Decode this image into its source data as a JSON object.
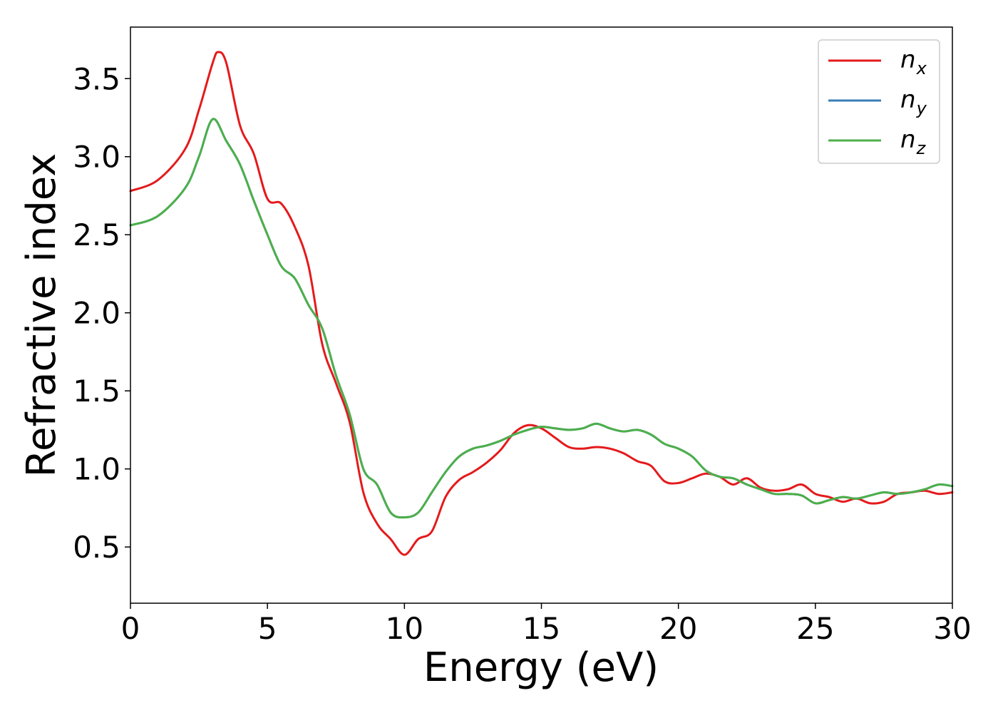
{
  "chart_data": {
    "type": "line",
    "xlabel": "Energy (eV)",
    "ylabel": "Refractive index",
    "xlim": [
      0,
      30
    ],
    "ylim": [
      0.14,
      3.83
    ],
    "xticks": [
      "0",
      "5",
      "10",
      "15",
      "20",
      "25",
      "30"
    ],
    "yticks": [
      "0.5",
      "1.0",
      "1.5",
      "2.0",
      "2.5",
      "3.0",
      "3.5"
    ],
    "legend_position": "top-right",
    "grid": false,
    "series": [
      {
        "name": "n",
        "subscript": "x",
        "color": "#e41a1c",
        "x": [
          0,
          1,
          2,
          2.5,
          3,
          3.2,
          3.5,
          4,
          4.5,
          5,
          5.5,
          6,
          6.5,
          7,
          7.5,
          8,
          8.5,
          9,
          9.5,
          10,
          10.5,
          11,
          11.5,
          12,
          12.5,
          13,
          13.5,
          14,
          14.5,
          15,
          15.5,
          16,
          16.5,
          17,
          17.5,
          18,
          18.5,
          19,
          19.5,
          20,
          20.5,
          21,
          21.5,
          22,
          22.5,
          23,
          23.5,
          24,
          24.5,
          25,
          25.5,
          26,
          26.5,
          27,
          27.5,
          28,
          28.5,
          29,
          29.5,
          30
        ],
        "values": [
          2.78,
          2.85,
          3.05,
          3.3,
          3.6,
          3.67,
          3.6,
          3.2,
          3.02,
          2.73,
          2.7,
          2.55,
          2.3,
          1.8,
          1.55,
          1.3,
          0.85,
          0.65,
          0.55,
          0.45,
          0.55,
          0.6,
          0.82,
          0.93,
          0.98,
          1.04,
          1.12,
          1.23,
          1.28,
          1.26,
          1.2,
          1.14,
          1.13,
          1.14,
          1.13,
          1.1,
          1.05,
          1.02,
          0.92,
          0.91,
          0.94,
          0.97,
          0.95,
          0.9,
          0.94,
          0.88,
          0.86,
          0.87,
          0.9,
          0.84,
          0.82,
          0.79,
          0.81,
          0.78,
          0.79,
          0.84,
          0.85,
          0.86,
          0.84,
          0.85
        ]
      },
      {
        "name": "n",
        "subscript": "y",
        "color": "#377eb8",
        "x": [
          0,
          1,
          2,
          2.5,
          3,
          3.5,
          4,
          4.5,
          5,
          5.5,
          6,
          6.5,
          7,
          7.5,
          8,
          8.5,
          9,
          9.5,
          10,
          10.5,
          11,
          11.5,
          12,
          12.5,
          13,
          13.5,
          14,
          14.5,
          15,
          15.5,
          16,
          16.5,
          17,
          17.5,
          18,
          18.5,
          19,
          19.5,
          20,
          20.5,
          21,
          21.5,
          22,
          22.5,
          23,
          23.5,
          24,
          24.5,
          25,
          25.5,
          26,
          26.5,
          27,
          27.5,
          28,
          28.5,
          29,
          29.5,
          30
        ],
        "values": [
          2.56,
          2.62,
          2.8,
          3.0,
          3.24,
          3.1,
          2.95,
          2.72,
          2.5,
          2.3,
          2.22,
          2.05,
          1.9,
          1.6,
          1.35,
          1.0,
          0.9,
          0.72,
          0.69,
          0.72,
          0.85,
          0.98,
          1.08,
          1.13,
          1.15,
          1.18,
          1.22,
          1.25,
          1.27,
          1.26,
          1.25,
          1.26,
          1.29,
          1.26,
          1.24,
          1.25,
          1.22,
          1.16,
          1.13,
          1.08,
          0.99,
          0.95,
          0.94,
          0.9,
          0.87,
          0.84,
          0.84,
          0.83,
          0.78,
          0.8,
          0.82,
          0.81,
          0.83,
          0.85,
          0.84,
          0.85,
          0.87,
          0.9,
          0.89
        ]
      },
      {
        "name": "n",
        "subscript": "z",
        "color": "#4daf4a",
        "x": [
          0,
          1,
          2,
          2.5,
          3,
          3.5,
          4,
          4.5,
          5,
          5.5,
          6,
          6.5,
          7,
          7.5,
          8,
          8.5,
          9,
          9.5,
          10,
          10.5,
          11,
          11.5,
          12,
          12.5,
          13,
          13.5,
          14,
          14.5,
          15,
          15.5,
          16,
          16.5,
          17,
          17.5,
          18,
          18.5,
          19,
          19.5,
          20,
          20.5,
          21,
          21.5,
          22,
          22.5,
          23,
          23.5,
          24,
          24.5,
          25,
          25.5,
          26,
          26.5,
          27,
          27.5,
          28,
          28.5,
          29,
          29.5,
          30
        ],
        "values": [
          2.56,
          2.62,
          2.8,
          3.0,
          3.24,
          3.1,
          2.95,
          2.72,
          2.5,
          2.3,
          2.22,
          2.05,
          1.9,
          1.6,
          1.35,
          1.0,
          0.9,
          0.72,
          0.69,
          0.72,
          0.85,
          0.98,
          1.08,
          1.13,
          1.15,
          1.18,
          1.22,
          1.25,
          1.27,
          1.26,
          1.25,
          1.26,
          1.29,
          1.26,
          1.24,
          1.25,
          1.22,
          1.16,
          1.13,
          1.08,
          0.99,
          0.95,
          0.94,
          0.9,
          0.87,
          0.84,
          0.84,
          0.83,
          0.78,
          0.8,
          0.82,
          0.81,
          0.83,
          0.85,
          0.84,
          0.85,
          0.87,
          0.9,
          0.89
        ]
      }
    ]
  }
}
